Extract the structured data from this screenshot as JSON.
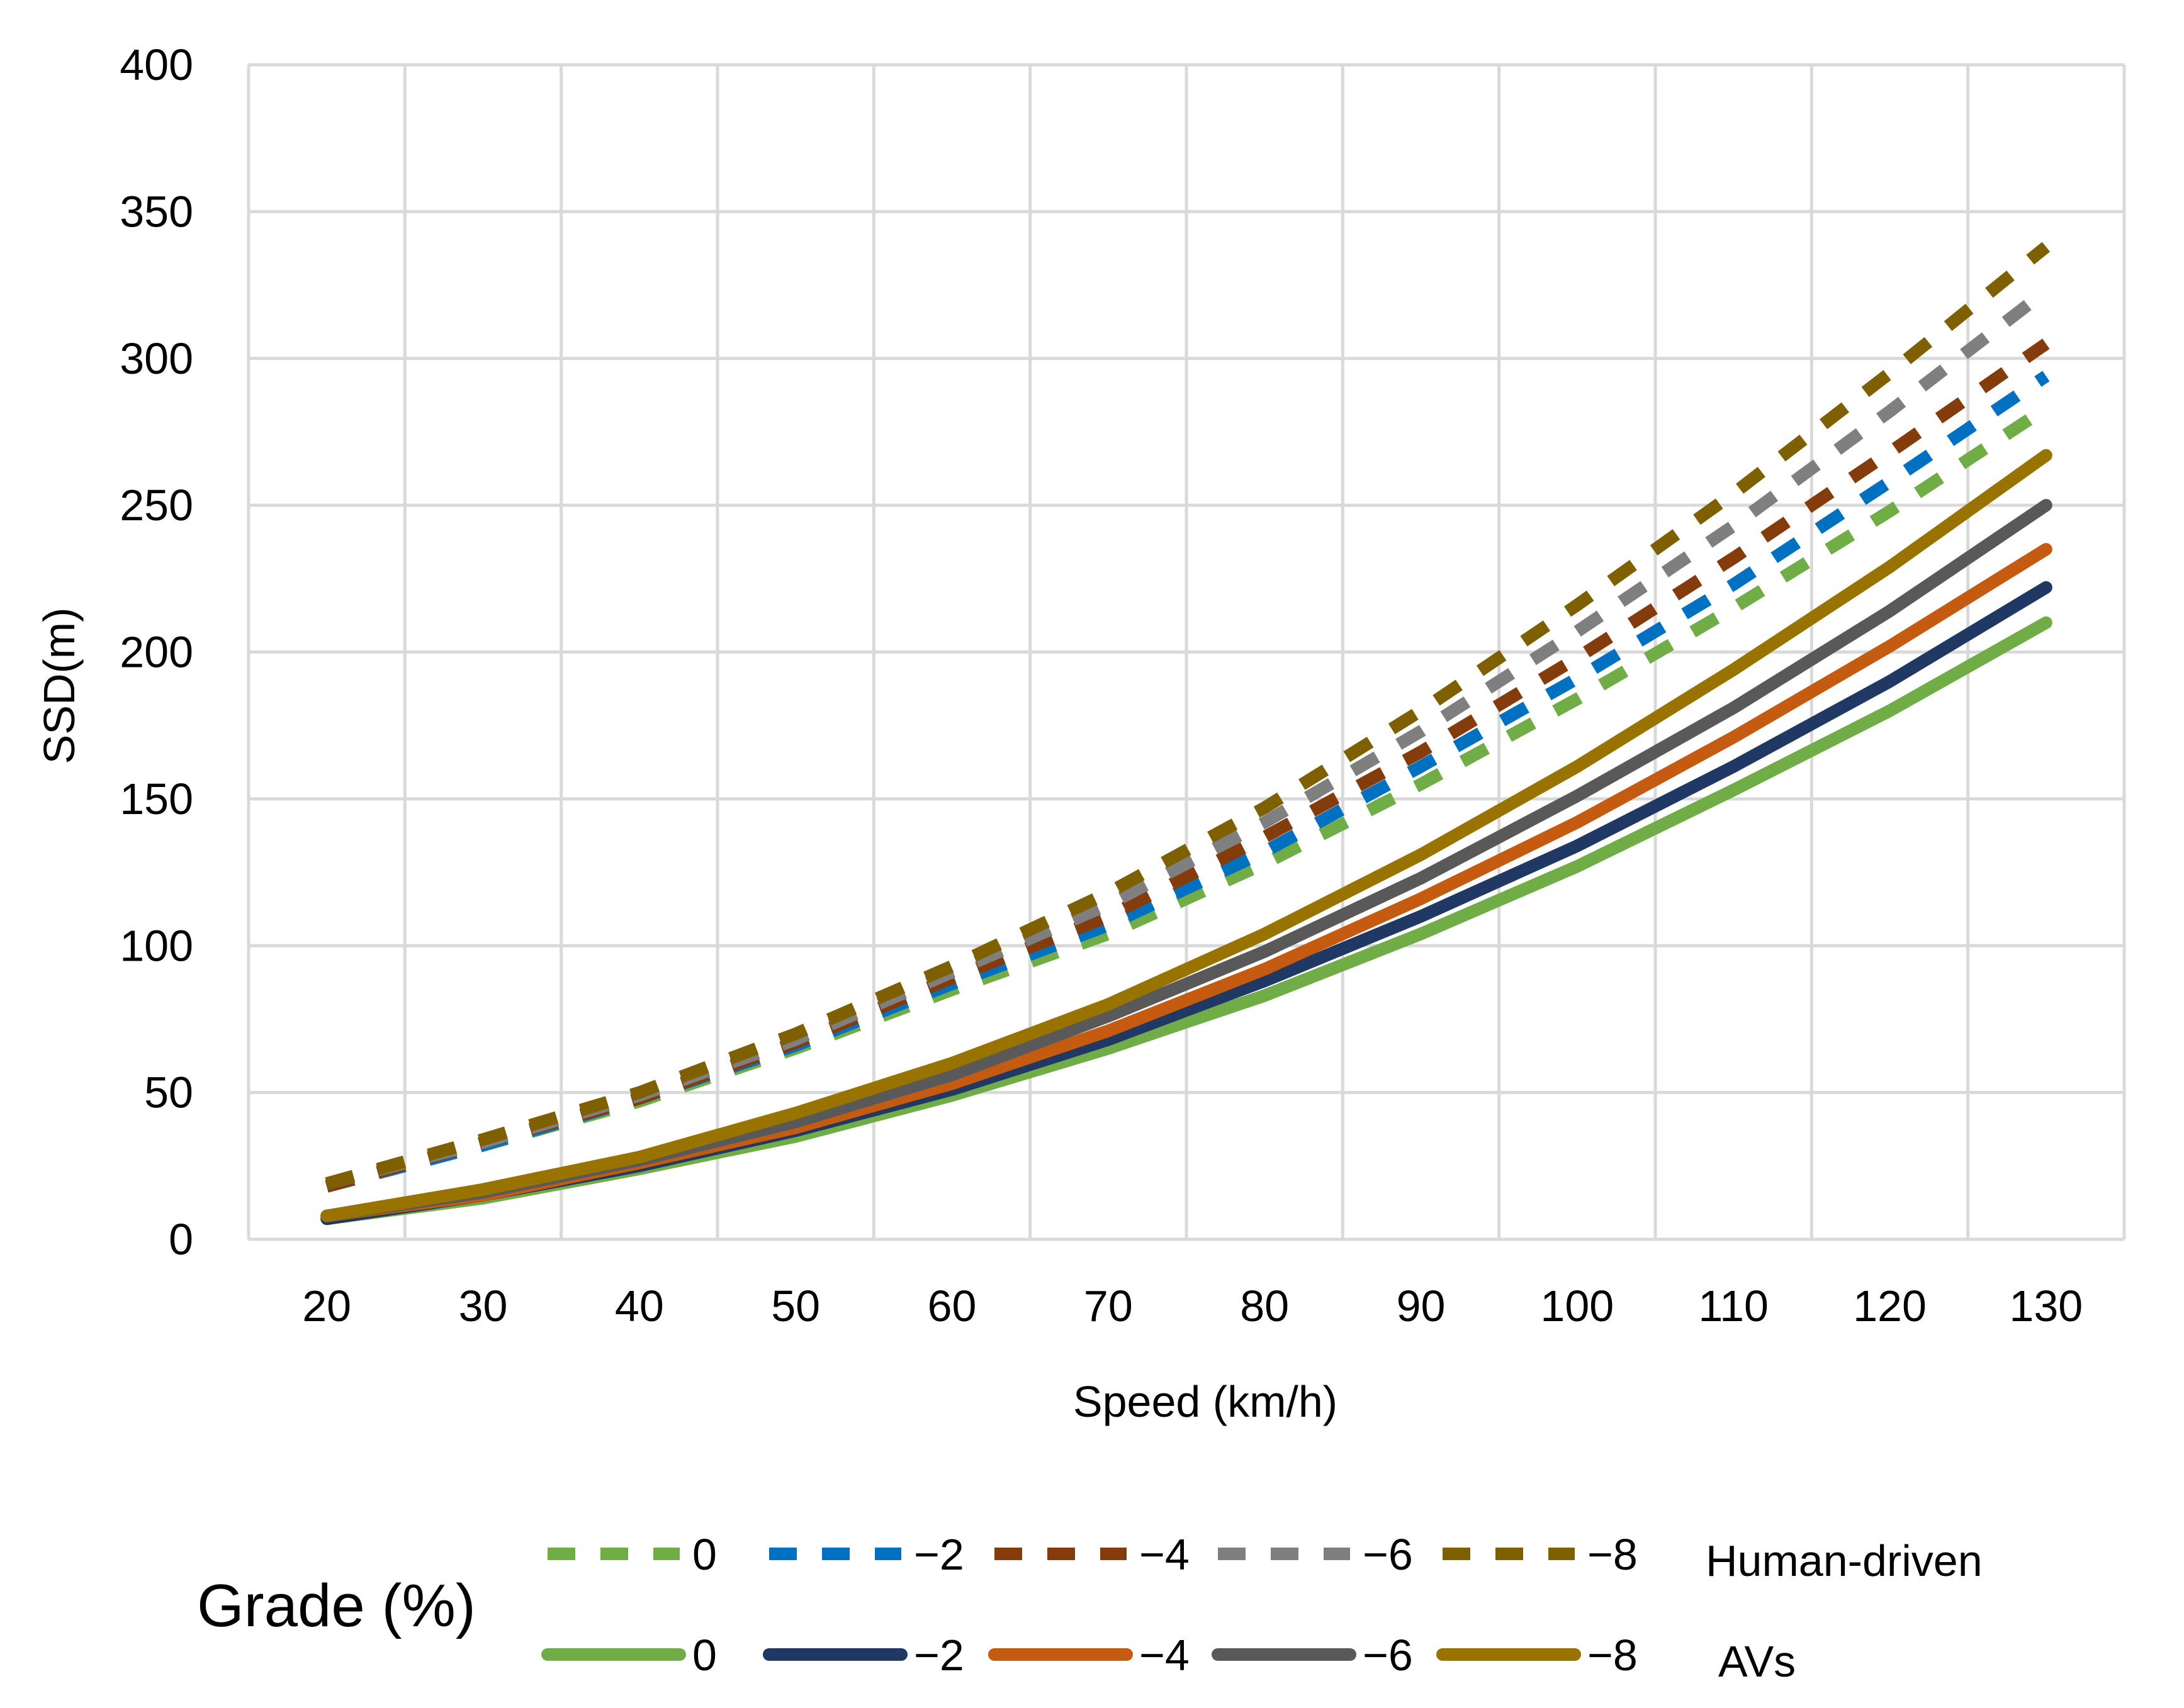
{
  "chart_data": {
    "type": "line",
    "title": "",
    "xlabel": "Speed (km/h)",
    "ylabel": "SSD(m)",
    "ylim": [
      0,
      400
    ],
    "yticks": [
      0,
      50,
      100,
      150,
      200,
      250,
      300,
      350,
      400
    ],
    "categories": [
      20,
      30,
      40,
      50,
      60,
      70,
      80,
      90,
      100,
      110,
      120,
      130
    ],
    "grid": true,
    "legend_title": "Grade (%)",
    "legend_group_human": "Human-driven",
    "legend_group_av": "AVs",
    "series": [
      {
        "name": "0",
        "group": "Human-driven",
        "dashed": true,
        "color": "#70ad47",
        "values": [
          18,
          32,
          47,
          65,
          85,
          104,
          128,
          155,
          184,
          215,
          248,
          283
        ]
      },
      {
        "name": "−2",
        "group": "Human-driven",
        "dashed": true,
        "color": "#0070c0",
        "values": [
          18,
          32,
          48,
          66,
          87,
          107,
          132,
          161,
          191,
          223,
          258,
          294
        ]
      },
      {
        "name": "−4",
        "group": "Human-driven",
        "dashed": true,
        "color": "#843c0c",
        "values": [
          18,
          33,
          48,
          67,
          89,
          110,
          137,
          166,
          198,
          232,
          268,
          305
        ]
      },
      {
        "name": "−6",
        "group": "Human-driven",
        "dashed": true,
        "color": "#7f7f7f",
        "values": [
          19,
          33,
          49,
          68,
          91,
          114,
          142,
          173,
          207,
          243,
          282,
          323
        ]
      },
      {
        "name": "−8",
        "group": "Human-driven",
        "dashed": true,
        "color": "#7f6000",
        "values": [
          19,
          34,
          50,
          70,
          93,
          118,
          147,
          180,
          216,
          254,
          295,
          338
        ]
      },
      {
        "name": "0",
        "group": "AVs",
        "dashed": false,
        "color": "#70ad47",
        "values": [
          7,
          14,
          24,
          35,
          49,
          65,
          83,
          104,
          127,
          153,
          180,
          210
        ]
      },
      {
        "name": "−2",
        "group": "AVs",
        "dashed": false,
        "color": "#203864",
        "values": [
          7,
          15,
          25,
          37,
          51,
          68,
          88,
          110,
          134,
          161,
          190,
          222
        ]
      },
      {
        "name": "−4",
        "group": "AVs",
        "dashed": false,
        "color": "#c55a11",
        "values": [
          8,
          15,
          26,
          38,
          53,
          71,
          92,
          116,
          142,
          171,
          202,
          235
        ]
      },
      {
        "name": "−6",
        "group": "AVs",
        "dashed": false,
        "color": "#595959",
        "values": [
          8,
          16,
          27,
          40,
          56,
          76,
          98,
          123,
          151,
          181,
          214,
          250
        ]
      },
      {
        "name": "−8",
        "group": "AVs",
        "dashed": false,
        "color": "#997300",
        "values": [
          8,
          17,
          28,
          43,
          60,
          80,
          104,
          131,
          161,
          194,
          229,
          267
        ]
      }
    ]
  }
}
